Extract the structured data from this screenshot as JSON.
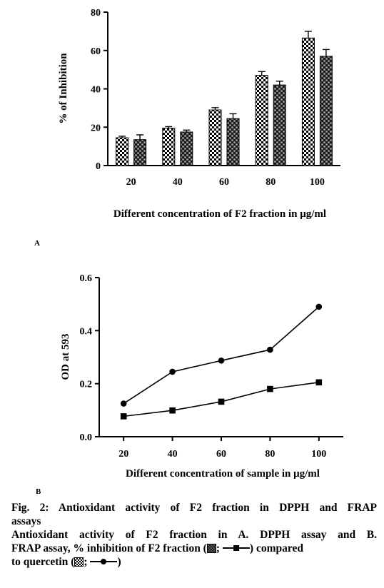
{
  "chart_data": [
    {
      "type": "bar",
      "panel_label": "A",
      "categories": [
        "20",
        "40",
        "60",
        "80",
        "100"
      ],
      "series": [
        {
          "values": [
            14.5,
            19.5,
            29,
            47,
            66.5
          ],
          "errors": [
            0.8,
            0.8,
            1.2,
            2,
            3.5
          ],
          "pattern": "checker-light"
        },
        {
          "values": [
            13.5,
            17.5,
            24.5,
            42,
            57
          ],
          "errors": [
            2.5,
            1.0,
            2.5,
            2,
            3.5
          ],
          "pattern": "checker-dark"
        }
      ],
      "yticks": [
        "0",
        "20",
        "40",
        "60",
        "80"
      ],
      "ylim": [
        0,
        80
      ],
      "xlabel": "Different concentration  of F2 fraction in μg/ml",
      "ylabel": "% of Inhibition",
      "grid": false
    },
    {
      "type": "line",
      "panel_label": "B",
      "x": [
        20,
        40,
        60,
        80,
        100
      ],
      "xticks": [
        "20",
        "40",
        "60",
        "80",
        "100"
      ],
      "series": [
        {
          "marker": "circle",
          "values": [
            0.125,
            0.245,
            0.287,
            0.328,
            0.49
          ]
        },
        {
          "marker": "square",
          "values": [
            0.077,
            0.099,
            0.132,
            0.18,
            0.205
          ]
        }
      ],
      "yticks": [
        "0.0",
        "0.2",
        "0.4",
        "0.6"
      ],
      "ylim": [
        0,
        0.6
      ],
      "xlim": [
        10,
        110
      ],
      "xlabel": "Different concentration of sample in μg/ml",
      "ylabel": "OD at 593",
      "grid": false
    }
  ],
  "caption": {
    "line1": "Fig. 2: Antioxidant activity of F2 fraction in DPPH and FRAP",
    "line2": "assays",
    "line3": "Antioxidant activity of F2 fraction in A. DPPH assay and B.",
    "line4_text": "FRAP assay, % inhibition of F2 fraction (",
    "line4_mid": "; ",
    "line4_end": ")  compared",
    "line5_text": "to quercetin (",
    "line5_mid": "; ",
    "line5_end": ")"
  }
}
